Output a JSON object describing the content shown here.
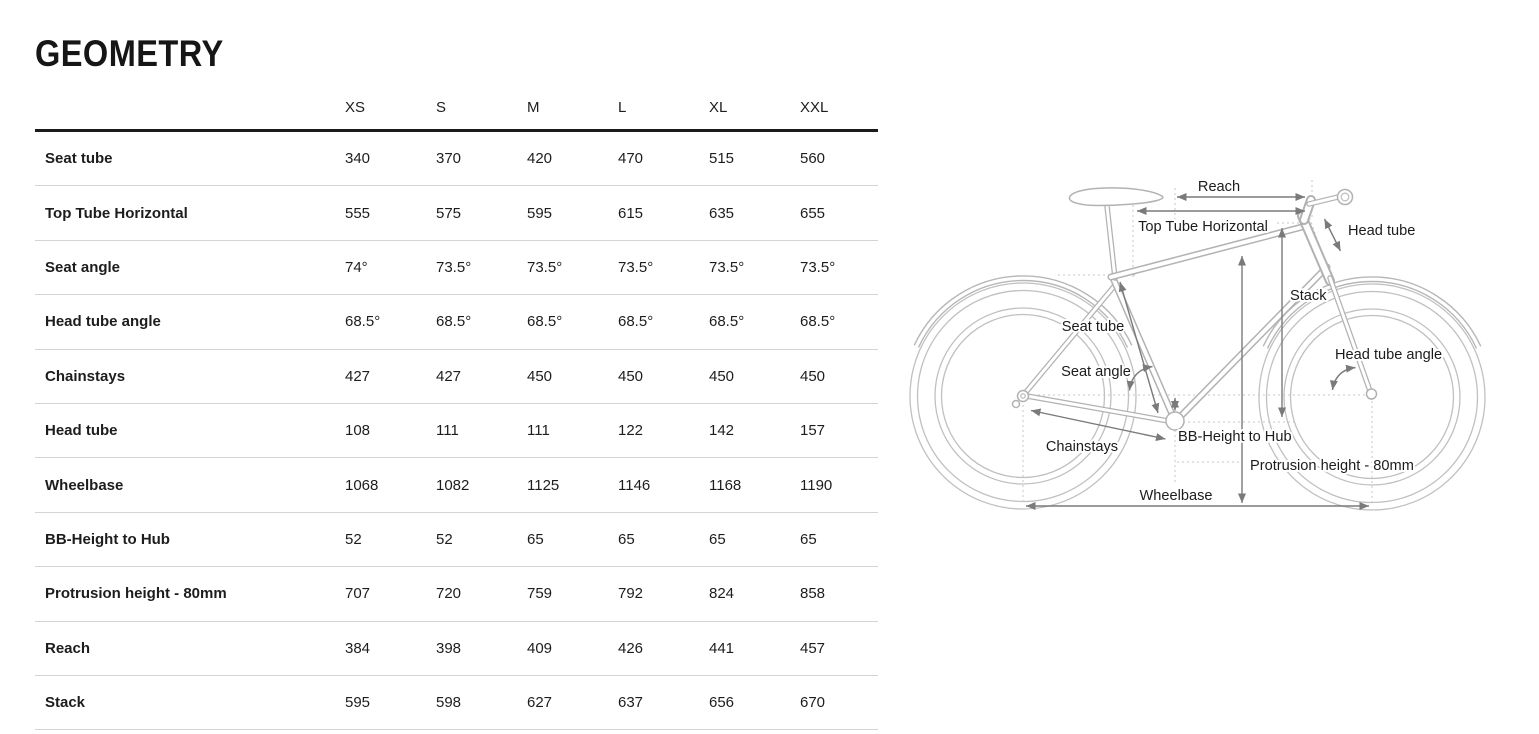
{
  "title": "GEOMETRY",
  "table": {
    "sizes": [
      "XS",
      "S",
      "M",
      "L",
      "XL",
      "XXL"
    ],
    "rows": [
      {
        "label": "Seat tube",
        "values": [
          "340",
          "370",
          "420",
          "470",
          "515",
          "560"
        ]
      },
      {
        "label": "Top Tube Horizontal",
        "values": [
          "555",
          "575",
          "595",
          "615",
          "635",
          "655"
        ]
      },
      {
        "label": "Seat angle",
        "values": [
          "74°",
          "73.5°",
          "73.5°",
          "73.5°",
          "73.5°",
          "73.5°"
        ]
      },
      {
        "label": "Head tube angle",
        "values": [
          "68.5°",
          "68.5°",
          "68.5°",
          "68.5°",
          "68.5°",
          "68.5°"
        ]
      },
      {
        "label": "Chainstays",
        "values": [
          "427",
          "427",
          "450",
          "450",
          "450",
          "450"
        ]
      },
      {
        "label": "Head tube",
        "values": [
          "108",
          "111",
          "111",
          "122",
          "142",
          "157"
        ]
      },
      {
        "label": "Wheelbase",
        "values": [
          "1068",
          "1082",
          "1125",
          "1146",
          "1168",
          "1190"
        ]
      },
      {
        "label": "BB-Height to Hub",
        "values": [
          "52",
          "52",
          "65",
          "65",
          "65",
          "65"
        ]
      },
      {
        "label": "Protrusion height - 80mm",
        "values": [
          "707",
          "720",
          "759",
          "792",
          "824",
          "858"
        ]
      },
      {
        "label": "Reach",
        "values": [
          "384",
          "398",
          "409",
          "426",
          "441",
          "457"
        ]
      },
      {
        "label": "Stack",
        "values": [
          "595",
          "598",
          "627",
          "637",
          "656",
          "670"
        ]
      }
    ]
  },
  "diagram": {
    "labels": {
      "reach": "Reach",
      "top_tube_horizontal": "Top Tube Horizontal",
      "head_tube": "Head tube",
      "stack": "Stack",
      "seat_tube": "Seat tube",
      "seat_angle": "Seat angle",
      "head_tube_angle": "Head tube angle",
      "chainstays": "Chainstays",
      "bb_height_to_hub": "BB-Height to Hub",
      "protrusion_height": "Protrusion height - 80mm",
      "wheelbase": "Wheelbase"
    },
    "colors": {
      "bike_line": "#b2b2b2",
      "dimension_line": "#7a7a7a",
      "text": "#1c1c1c"
    }
  }
}
